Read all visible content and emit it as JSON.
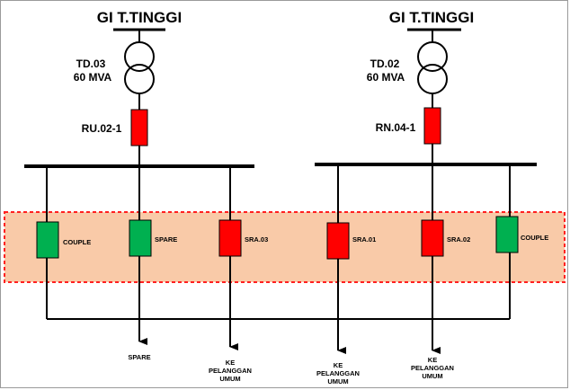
{
  "colors": {
    "red": "#ff0000",
    "green": "#00b050",
    "zone_fill": "#f9caa8",
    "zone_border": "#ff2020",
    "line": "#000000"
  },
  "left": {
    "title": "GI T.TINGGI",
    "transformer_name": "TD.03",
    "transformer_rating": "60 MVA",
    "incoming_breaker": "RU.02-1",
    "feeders": [
      {
        "label": "COUPLE",
        "status": "closed",
        "color": "green"
      },
      {
        "label": "SPARE",
        "status": "closed",
        "color": "green",
        "destination": [
          "SPARE"
        ]
      },
      {
        "label": "SRA.03",
        "status": "closed",
        "color": "red",
        "destination": [
          "KE",
          "PELANGGAN",
          "UMUM"
        ]
      }
    ]
  },
  "right": {
    "title": "GI T.TINGGI",
    "transformer_name": "TD.02",
    "transformer_rating": "60 MVA",
    "incoming_breaker": "RN.04-1",
    "feeders": [
      {
        "label": "SRA.01",
        "status": "closed",
        "color": "red",
        "destination": [
          "KE",
          "PELANGGAN",
          "UMUM"
        ]
      },
      {
        "label": "SRA.02",
        "status": "closed",
        "color": "red",
        "destination": [
          "KE",
          "PELANGGAN",
          "UMUM"
        ]
      },
      {
        "label": "COUPLE",
        "status": "closed",
        "color": "green"
      }
    ]
  }
}
